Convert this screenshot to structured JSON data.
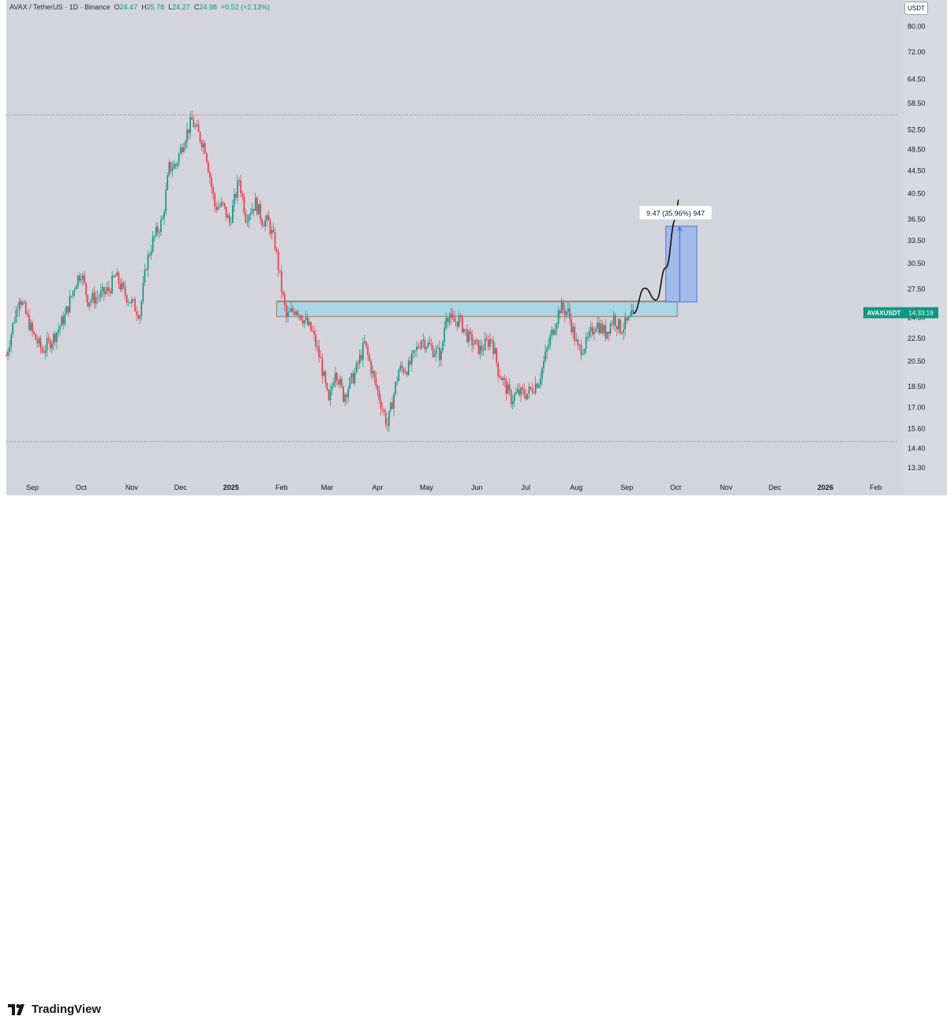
{
  "header": {
    "pair": "AVAX / TetherUS",
    "interval": "1D",
    "exchange": "Binance",
    "open_label": "O",
    "open": "24.47",
    "high_label": "H",
    "high": "25.78",
    "low_label": "L",
    "low": "24.27",
    "close_label": "C",
    "close": "24.98",
    "change": "+0.52 (+2.13%)",
    "separator": "·"
  },
  "currency_badge": "USDT",
  "price_label": {
    "symbol": "AVAXUSDT",
    "time": "14:33:19",
    "price": 24.98,
    "color": "#089981"
  },
  "measure_label": "9.47 (35.96%) 947",
  "brand": "TradingView",
  "colors": {
    "up": "#089981",
    "down": "#f23645",
    "zone_fill": "#a9d6e5",
    "projection_fill": "#9ab6ec",
    "background": "#d3d4dc"
  },
  "chart_data": {
    "type": "candlestick",
    "title": "",
    "ylabel": "",
    "xlabel": "",
    "yscale": "log",
    "ylim": [
      12.6,
      89.0
    ],
    "y_ticks": [
      "80.00",
      "72.00",
      "64.50",
      "58.50",
      "52.50",
      "48.50",
      "44.50",
      "40.50",
      "36.50",
      "33.50",
      "30.50",
      "27.50",
      "24.50",
      "22.50",
      "20.50",
      "18.50",
      "17.00",
      "15.60",
      "14.40",
      "13.30"
    ],
    "x_ticks": [
      "Sep",
      "Oct",
      "Nov",
      "Dec",
      "2025",
      "Feb",
      "Mar",
      "Apr",
      "May",
      "Jun",
      "Jul",
      "Aug",
      "Sep",
      "Oct",
      "Nov",
      "Dec",
      "2026",
      "Feb"
    ],
    "x_tick_dates": [
      "2024-09-01",
      "2024-10-01",
      "2024-11-01",
      "2024-12-01",
      "2025-01-01",
      "2025-02-01",
      "2025-03-01",
      "2025-04-01",
      "2025-05-01",
      "2025-06-01",
      "2025-07-01",
      "2025-08-01",
      "2025-09-01",
      "2025-10-01",
      "2025-11-01",
      "2025-12-01",
      "2026-01-01",
      "2026-02-01"
    ],
    "xlim": [
      "2024-08-16",
      "2026-02-18"
    ],
    "price_path": [
      [
        "2024-08-16",
        21.0
      ],
      [
        "2024-08-24",
        26.8
      ],
      [
        "2024-09-01",
        23.0
      ],
      [
        "2024-09-07",
        21.4
      ],
      [
        "2024-09-14",
        22.6
      ],
      [
        "2024-09-21",
        24.6
      ],
      [
        "2024-09-28",
        28.5
      ],
      [
        "2024-10-01",
        29.5
      ],
      [
        "2024-10-05",
        26.3
      ],
      [
        "2024-10-12",
        26.7
      ],
      [
        "2024-10-18",
        27.4
      ],
      [
        "2024-10-22",
        29.0
      ],
      [
        "2024-10-27",
        27.2
      ],
      [
        "2024-11-01",
        26.0
      ],
      [
        "2024-11-06",
        24.9
      ],
      [
        "2024-11-10",
        30.5
      ],
      [
        "2024-11-14",
        33.5
      ],
      [
        "2024-11-20",
        36.5
      ],
      [
        "2024-11-24",
        45.0
      ],
      [
        "2024-11-28",
        45.5
      ],
      [
        "2024-12-03",
        50.5
      ],
      [
        "2024-12-08",
        54.5
      ],
      [
        "2024-12-12",
        51.5
      ],
      [
        "2024-12-16",
        49.0
      ],
      [
        "2024-12-22",
        38.5
      ],
      [
        "2024-12-27",
        38.5
      ],
      [
        "2024-12-31",
        36.0
      ],
      [
        "2025-01-06",
        43.0
      ],
      [
        "2025-01-10",
        37.0
      ],
      [
        "2025-01-16",
        39.0
      ],
      [
        "2025-01-20",
        36.5
      ],
      [
        "2025-01-24",
        36.0
      ],
      [
        "2025-01-28",
        33.0
      ],
      [
        "2025-02-01",
        27.5
      ],
      [
        "2025-02-04",
        24.5
      ],
      [
        "2025-02-10",
        25.5
      ],
      [
        "2025-02-16",
        24.0
      ],
      [
        "2025-02-20",
        23.0
      ],
      [
        "2025-02-25",
        20.5
      ],
      [
        "2025-03-02",
        17.2
      ],
      [
        "2025-03-06",
        20.0
      ],
      [
        "2025-03-11",
        17.8
      ],
      [
        "2025-03-18",
        19.5
      ],
      [
        "2025-03-24",
        22.0
      ],
      [
        "2025-03-30",
        19.0
      ],
      [
        "2025-04-07",
        15.8
      ],
      [
        "2025-04-14",
        19.8
      ],
      [
        "2025-04-20",
        20.0
      ],
      [
        "2025-04-28",
        22.5
      ],
      [
        "2025-05-05",
        21.5
      ],
      [
        "2025-05-10",
        21.0
      ],
      [
        "2025-05-13",
        25.0
      ],
      [
        "2025-05-17",
        24.0
      ],
      [
        "2025-05-21",
        24.3
      ],
      [
        "2025-05-27",
        22.5
      ],
      [
        "2025-06-03",
        21.5
      ],
      [
        "2025-06-10",
        22.5
      ],
      [
        "2025-06-14",
        19.8
      ],
      [
        "2025-06-22",
        17.6
      ],
      [
        "2025-06-26",
        18.0
      ],
      [
        "2025-07-02",
        18.0
      ],
      [
        "2025-07-09",
        19.0
      ],
      [
        "2025-07-16",
        22.5
      ],
      [
        "2025-07-22",
        25.5
      ],
      [
        "2025-07-27",
        25.0
      ],
      [
        "2025-08-02",
        21.5
      ],
      [
        "2025-08-07",
        22.0
      ],
      [
        "2025-08-13",
        24.0
      ],
      [
        "2025-08-19",
        23.0
      ],
      [
        "2025-08-24",
        24.5
      ],
      [
        "2025-08-28",
        23.4
      ],
      [
        "2025-09-03",
        24.2
      ],
      [
        "2025-09-05",
        24.98
      ]
    ],
    "annotations": {
      "resistance_zone": {
        "from": "2025-01-29",
        "to": "2025-10-02",
        "low": 24.6,
        "high": 26.1
      },
      "resistance_extra_line": {
        "price": 26.2
      },
      "high_dotted_line": {
        "price": 55.8
      },
      "low_dotted_line": {
        "price": 14.8
      },
      "projection_box": {
        "from": "2025-09-25",
        "to": "2025-10-14",
        "low": 26.1,
        "high": 35.5
      },
      "projection_path": [
        [
          "2025-09-05",
          24.9
        ],
        [
          "2025-09-12",
          27.6
        ],
        [
          "2025-09-19",
          26.3
        ],
        [
          "2025-09-25",
          30.0
        ],
        [
          "2025-10-01",
          36.5
        ],
        [
          "2025-10-03",
          39.5
        ]
      ],
      "measure_label": {
        "text": "9.47 (35.96%) 947",
        "date": "2025-10-01",
        "price": 37.4
      }
    }
  }
}
